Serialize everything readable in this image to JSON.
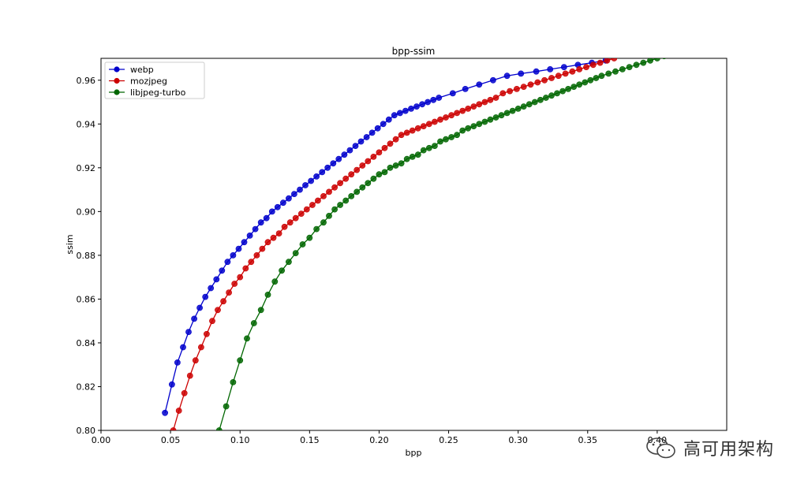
{
  "chart_data": {
    "type": "line",
    "title": "bpp-ssim",
    "xlabel": "bpp",
    "ylabel": "ssim",
    "xlim": [
      0.0,
      0.45
    ],
    "ylim": [
      0.8,
      0.97
    ],
    "xticks": [
      "0.00",
      "0.05",
      "0.10",
      "0.15",
      "0.20",
      "0.25",
      "0.30",
      "0.35",
      "0.40"
    ],
    "yticks": [
      "0.80",
      "0.82",
      "0.84",
      "0.86",
      "0.88",
      "0.90",
      "0.92",
      "0.94",
      "0.96"
    ],
    "legend": "top-left",
    "grid": false,
    "series": [
      {
        "name": "webp",
        "color": "#0000cc",
        "x": [
          0.046,
          0.051,
          0.055,
          0.059,
          0.063,
          0.067,
          0.071,
          0.075,
          0.079,
          0.083,
          0.087,
          0.091,
          0.095,
          0.099,
          0.103,
          0.107,
          0.111,
          0.115,
          0.119,
          0.123,
          0.127,
          0.131,
          0.135,
          0.139,
          0.143,
          0.147,
          0.151,
          0.155,
          0.159,
          0.163,
          0.167,
          0.171,
          0.175,
          0.179,
          0.183,
          0.187,
          0.191,
          0.195,
          0.199,
          0.203,
          0.207,
          0.211,
          0.215,
          0.219,
          0.223,
          0.227,
          0.231,
          0.235,
          0.239,
          0.243,
          0.253,
          0.262,
          0.272,
          0.282,
          0.292,
          0.302,
          0.313,
          0.323,
          0.333,
          0.343,
          0.353,
          0.363
        ],
        "y": [
          0.808,
          0.821,
          0.831,
          0.838,
          0.845,
          0.851,
          0.856,
          0.861,
          0.865,
          0.869,
          0.873,
          0.877,
          0.88,
          0.883,
          0.886,
          0.889,
          0.892,
          0.895,
          0.897,
          0.9,
          0.902,
          0.904,
          0.906,
          0.908,
          0.91,
          0.912,
          0.914,
          0.916,
          0.918,
          0.92,
          0.922,
          0.924,
          0.926,
          0.928,
          0.93,
          0.932,
          0.934,
          0.936,
          0.938,
          0.94,
          0.942,
          0.944,
          0.945,
          0.946,
          0.947,
          0.948,
          0.949,
          0.95,
          0.951,
          0.952,
          0.954,
          0.956,
          0.958,
          0.96,
          0.962,
          0.963,
          0.964,
          0.965,
          0.966,
          0.967,
          0.968,
          0.969
        ]
      },
      {
        "name": "mozjpeg",
        "color": "#cc0000",
        "x": [
          0.052,
          0.056,
          0.06,
          0.064,
          0.068,
          0.072,
          0.076,
          0.08,
          0.084,
          0.088,
          0.092,
          0.096,
          0.1,
          0.104,
          0.108,
          0.112,
          0.116,
          0.12,
          0.124,
          0.128,
          0.132,
          0.136,
          0.14,
          0.144,
          0.148,
          0.152,
          0.156,
          0.16,
          0.164,
          0.168,
          0.172,
          0.176,
          0.18,
          0.184,
          0.188,
          0.192,
          0.196,
          0.2,
          0.204,
          0.208,
          0.212,
          0.216,
          0.22,
          0.224,
          0.228,
          0.232,
          0.236,
          0.24,
          0.244,
          0.248,
          0.252,
          0.256,
          0.26,
          0.264,
          0.268,
          0.272,
          0.276,
          0.28,
          0.284,
          0.289,
          0.294,
          0.299,
          0.304,
          0.309,
          0.314,
          0.319,
          0.324,
          0.329,
          0.334,
          0.339,
          0.344,
          0.349,
          0.354,
          0.359,
          0.364,
          0.369
        ],
        "y": [
          0.8,
          0.809,
          0.817,
          0.825,
          0.832,
          0.838,
          0.844,
          0.85,
          0.855,
          0.859,
          0.863,
          0.867,
          0.87,
          0.874,
          0.877,
          0.88,
          0.883,
          0.886,
          0.888,
          0.89,
          0.893,
          0.895,
          0.897,
          0.899,
          0.901,
          0.903,
          0.905,
          0.907,
          0.909,
          0.911,
          0.913,
          0.915,
          0.917,
          0.919,
          0.921,
          0.923,
          0.925,
          0.927,
          0.929,
          0.931,
          0.933,
          0.935,
          0.936,
          0.937,
          0.938,
          0.939,
          0.94,
          0.941,
          0.942,
          0.943,
          0.944,
          0.945,
          0.946,
          0.947,
          0.948,
          0.949,
          0.95,
          0.951,
          0.952,
          0.954,
          0.955,
          0.956,
          0.957,
          0.958,
          0.959,
          0.96,
          0.961,
          0.962,
          0.963,
          0.964,
          0.965,
          0.966,
          0.967,
          0.968,
          0.969,
          0.97
        ]
      },
      {
        "name": "libjpeg-turbo",
        "color": "#006600",
        "x": [
          0.085,
          0.09,
          0.095,
          0.1,
          0.105,
          0.11,
          0.115,
          0.12,
          0.125,
          0.13,
          0.135,
          0.14,
          0.145,
          0.15,
          0.155,
          0.16,
          0.164,
          0.168,
          0.172,
          0.176,
          0.18,
          0.184,
          0.188,
          0.192,
          0.196,
          0.2,
          0.204,
          0.208,
          0.212,
          0.216,
          0.22,
          0.224,
          0.228,
          0.232,
          0.236,
          0.24,
          0.244,
          0.248,
          0.252,
          0.256,
          0.26,
          0.264,
          0.268,
          0.272,
          0.276,
          0.28,
          0.284,
          0.288,
          0.292,
          0.296,
          0.3,
          0.304,
          0.308,
          0.312,
          0.316,
          0.32,
          0.324,
          0.328,
          0.332,
          0.336,
          0.34,
          0.344,
          0.348,
          0.352,
          0.356,
          0.36,
          0.365,
          0.37,
          0.375,
          0.38,
          0.385,
          0.39,
          0.395,
          0.4,
          0.405
        ],
        "y": [
          0.8,
          0.811,
          0.822,
          0.832,
          0.842,
          0.849,
          0.855,
          0.862,
          0.868,
          0.873,
          0.877,
          0.881,
          0.885,
          0.888,
          0.892,
          0.895,
          0.898,
          0.901,
          0.903,
          0.905,
          0.907,
          0.909,
          0.911,
          0.913,
          0.915,
          0.917,
          0.918,
          0.92,
          0.921,
          0.922,
          0.924,
          0.925,
          0.926,
          0.928,
          0.929,
          0.93,
          0.932,
          0.933,
          0.934,
          0.935,
          0.937,
          0.938,
          0.939,
          0.94,
          0.941,
          0.942,
          0.943,
          0.944,
          0.945,
          0.946,
          0.947,
          0.948,
          0.949,
          0.95,
          0.951,
          0.952,
          0.953,
          0.954,
          0.955,
          0.956,
          0.957,
          0.958,
          0.959,
          0.96,
          0.961,
          0.962,
          0.963,
          0.964,
          0.965,
          0.966,
          0.967,
          0.968,
          0.969,
          0.97,
          0.971
        ]
      }
    ]
  },
  "watermark": {
    "text": "高可用架构",
    "icon": "wechat-icon"
  }
}
